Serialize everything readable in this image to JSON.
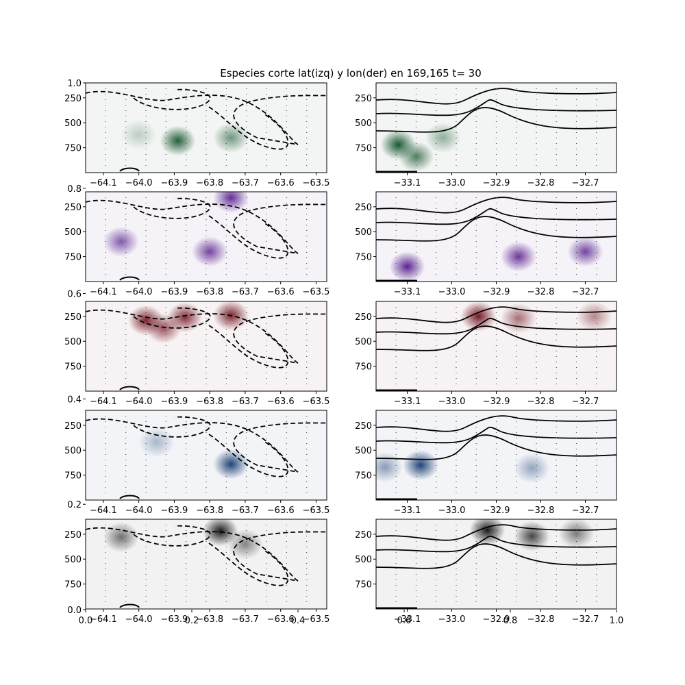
{
  "chart_data": {
    "type": "heatmap",
    "title": "Especies corte lat(izq) y lon(der) en 169,165 t= 30",
    "background_axes": {
      "x_ticks": [
        "0.0",
        "0.2",
        "0.4",
        "0.6",
        "0.8",
        "1.0"
      ],
      "y_ticks": [
        "0.0",
        "0.2",
        "0.4",
        "0.6",
        "0.8",
        "1.0"
      ]
    },
    "left_column": {
      "xlabel": "",
      "x_ticks": [
        "-64.1",
        "-64.0",
        "-63.9",
        "-63.8",
        "-63.7",
        "-63.6",
        "-63.5"
      ],
      "x_range": [
        -64.15,
        -63.47
      ]
    },
    "right_column": {
      "xlabel": "",
      "x_ticks": [
        "-33.1",
        "-33.0",
        "-32.9",
        "-32.8",
        "-32.7"
      ],
      "x_range": [
        -33.17,
        -32.63
      ]
    },
    "y_axis": {
      "inverted": true,
      "range": [
        1000,
        100
      ],
      "ticks": [
        "250",
        "500",
        "750"
      ]
    },
    "panels": [
      {
        "row": 1,
        "column": "left",
        "colormap": "Greens",
        "color": "#00441b",
        "hotspots": [
          {
            "x": -63.89,
            "y": 680,
            "intensity": 0.95
          },
          {
            "x": -63.74,
            "y": 650,
            "intensity": 0.6
          },
          {
            "x": -64.0,
            "y": 620,
            "intensity": 0.25
          }
        ]
      },
      {
        "row": 1,
        "column": "right",
        "colormap": "Greens",
        "color": "#00441b",
        "hotspots": [
          {
            "x": -33.12,
            "y": 720,
            "intensity": 1.0
          },
          {
            "x": -33.08,
            "y": 840,
            "intensity": 0.75
          },
          {
            "x": -33.02,
            "y": 650,
            "intensity": 0.45
          }
        ]
      },
      {
        "row": 2,
        "column": "left",
        "colormap": "Purples",
        "color": "#3f007d",
        "hotspots": [
          {
            "x": -63.8,
            "y": 700,
            "intensity": 0.8
          },
          {
            "x": -64.05,
            "y": 600,
            "intensity": 0.7
          },
          {
            "x": -63.74,
            "y": 160,
            "intensity": 0.9
          }
        ]
      },
      {
        "row": 2,
        "column": "right",
        "colormap": "Purples",
        "color": "#3f007d",
        "hotspots": [
          {
            "x": -33.1,
            "y": 850,
            "intensity": 0.95
          },
          {
            "x": -32.85,
            "y": 750,
            "intensity": 0.85
          },
          {
            "x": -32.7,
            "y": 700,
            "intensity": 0.8
          }
        ]
      },
      {
        "row": 3,
        "column": "left",
        "colormap": "Reds",
        "color": "#67000d",
        "hotspots": [
          {
            "x": -63.98,
            "y": 290,
            "intensity": 0.95
          },
          {
            "x": -63.87,
            "y": 260,
            "intensity": 0.9
          },
          {
            "x": -63.74,
            "y": 240,
            "intensity": 0.95
          },
          {
            "x": -63.93,
            "y": 370,
            "intensity": 0.75
          }
        ]
      },
      {
        "row": 3,
        "column": "right",
        "colormap": "Reds",
        "color": "#67000d",
        "hotspots": [
          {
            "x": -32.94,
            "y": 250,
            "intensity": 1.0
          },
          {
            "x": -32.85,
            "y": 270,
            "intensity": 0.6
          },
          {
            "x": -32.68,
            "y": 250,
            "intensity": 0.5
          }
        ]
      },
      {
        "row": 4,
        "column": "left",
        "colormap": "Blues",
        "color": "#08306b",
        "hotspots": [
          {
            "x": -63.74,
            "y": 640,
            "intensity": 1.0
          },
          {
            "x": -63.95,
            "y": 420,
            "intensity": 0.35
          }
        ]
      },
      {
        "row": 4,
        "column": "right",
        "colormap": "Blues",
        "color": "#08306b",
        "hotspots": [
          {
            "x": -33.07,
            "y": 650,
            "intensity": 1.0
          },
          {
            "x": -33.15,
            "y": 670,
            "intensity": 0.5
          },
          {
            "x": -32.82,
            "y": 680,
            "intensity": 0.45
          }
        ]
      },
      {
        "row": 5,
        "column": "left",
        "colormap": "Greys",
        "color": "#000000",
        "hotspots": [
          {
            "x": -63.77,
            "y": 220,
            "intensity": 1.0
          },
          {
            "x": -64.05,
            "y": 280,
            "intensity": 0.6
          },
          {
            "x": -63.7,
            "y": 350,
            "intensity": 0.5
          }
        ]
      },
      {
        "row": 5,
        "column": "right",
        "colormap": "Greys",
        "color": "#000000",
        "hotspots": [
          {
            "x": -32.92,
            "y": 210,
            "intensity": 1.0
          },
          {
            "x": -32.82,
            "y": 270,
            "intensity": 0.8
          },
          {
            "x": -32.72,
            "y": 240,
            "intensity": 0.55
          }
        ]
      }
    ]
  }
}
